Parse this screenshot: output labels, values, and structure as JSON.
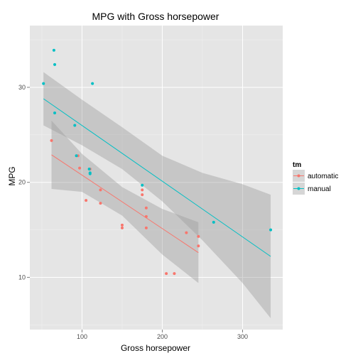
{
  "chart_data": {
    "type": "scatter",
    "title": "MPG with Gross horsepower",
    "xlabel": "Gross horsepower",
    "ylabel": "MPG",
    "xlim": [
      35,
      350
    ],
    "ylim": [
      4.5,
      36.5
    ],
    "xticks": [
      100,
      200,
      300
    ],
    "yticks": [
      10,
      20,
      30
    ],
    "grid": true,
    "legend": {
      "title": "tm",
      "placement": "right"
    },
    "series": [
      {
        "name": "automatic",
        "color": "#F8766D",
        "points": [
          [
            110,
            21.4
          ],
          [
            175,
            18.7
          ],
          [
            105,
            18.1
          ],
          [
            245,
            14.3
          ],
          [
            62,
            24.4
          ],
          [
            95,
            22.8
          ],
          [
            123,
            19.2
          ],
          [
            123,
            17.8
          ],
          [
            180,
            16.4
          ],
          [
            180,
            17.3
          ],
          [
            180,
            15.2
          ],
          [
            205,
            10.4
          ],
          [
            215,
            10.4
          ],
          [
            230,
            14.7
          ],
          [
            97,
            21.5
          ],
          [
            150,
            15.5
          ],
          [
            150,
            15.2
          ],
          [
            245,
            13.3
          ],
          [
            175,
            19.2
          ]
        ],
        "fit": {
          "x": [
            62,
            245
          ],
          "y": [
            22.9,
            12.6
          ]
        },
        "band": {
          "x": [
            62,
            100,
            150,
            200,
            245
          ],
          "upper": [
            26.5,
            23.0,
            19.5,
            17.2,
            15.8
          ],
          "lower": [
            19.3,
            19.0,
            16.5,
            12.4,
            9.4
          ]
        }
      },
      {
        "name": "manual",
        "color": "#00BFC4",
        "points": [
          [
            110,
            21.0
          ],
          [
            110,
            20.9
          ],
          [
            93,
            22.8
          ],
          [
            66,
            32.4
          ],
          [
            52,
            30.4
          ],
          [
            65,
            33.9
          ],
          [
            66,
            27.3
          ],
          [
            91,
            26.0
          ],
          [
            113,
            30.4
          ],
          [
            264,
            15.8
          ],
          [
            175,
            19.7
          ],
          [
            335,
            15.0
          ],
          [
            109,
            21.4
          ]
        ],
        "fit": {
          "x": [
            52,
            335
          ],
          "y": [
            28.8,
            12.2
          ]
        },
        "band": {
          "x": [
            52,
            100,
            150,
            200,
            250,
            300,
            335
          ],
          "upper": [
            31.6,
            28.7,
            25.8,
            22.8,
            21.0,
            19.8,
            18.7
          ],
          "lower": [
            26.0,
            23.9,
            21.4,
            18.0,
            13.9,
            9.4,
            5.7
          ]
        }
      }
    ]
  }
}
